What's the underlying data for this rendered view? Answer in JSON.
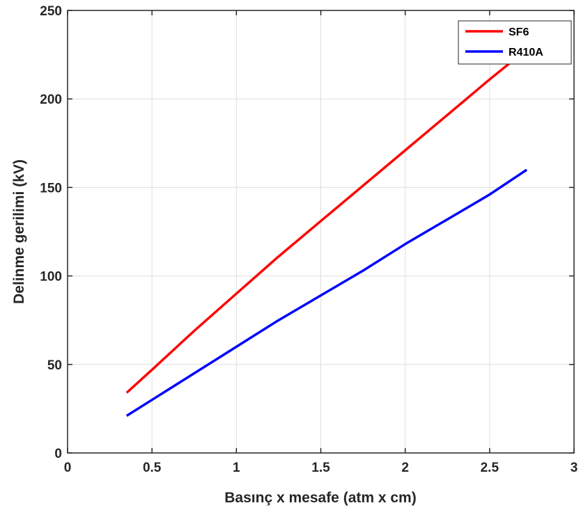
{
  "chart_data": {
    "type": "line",
    "title": "",
    "xlabel": "Basınç x mesafe (atm x cm)",
    "ylabel": "Delinme gerilimi (kV)",
    "xlim": [
      0,
      3
    ],
    "ylim": [
      0,
      250
    ],
    "xticks": [
      0,
      0.5,
      1,
      1.5,
      2,
      2.5,
      3
    ],
    "xtick_labels": [
      "0",
      "0.5",
      "1",
      "1.5",
      "2",
      "2.5",
      "3"
    ],
    "yticks": [
      0,
      50,
      100,
      150,
      200,
      250
    ],
    "ytick_labels": [
      "0",
      "50",
      "100",
      "150",
      "200",
      "250"
    ],
    "grid": true,
    "legend_position": "top-right",
    "series": [
      {
        "name": "SF6",
        "color": "#ff0000",
        "x": [
          0.35,
          0.5,
          0.75,
          1.0,
          1.25,
          1.5,
          1.75,
          2.0,
          2.25,
          2.5,
          2.72
        ],
        "y": [
          34,
          47,
          69,
          90,
          111,
          131,
          151,
          171,
          191,
          211,
          228
        ]
      },
      {
        "name": "R410A",
        "color": "#0000ff",
        "x": [
          0.35,
          0.5,
          0.75,
          1.0,
          1.25,
          1.5,
          1.75,
          2.0,
          2.25,
          2.5,
          2.72
        ],
        "y": [
          21,
          30,
          45,
          60,
          75,
          89,
          103,
          118,
          132,
          146,
          160
        ]
      }
    ]
  }
}
